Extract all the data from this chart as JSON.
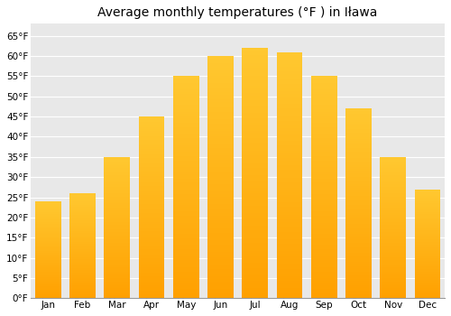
{
  "months": [
    "Jan",
    "Feb",
    "Mar",
    "Apr",
    "May",
    "Jun",
    "Jul",
    "Aug",
    "Sep",
    "Oct",
    "Nov",
    "Dec"
  ],
  "values": [
    24,
    26,
    35,
    45,
    55,
    60,
    62,
    61,
    55,
    47,
    35,
    27
  ],
  "bar_color_top": "#FFC830",
  "bar_color_bottom": "#FFA000",
  "title": "Average monthly temperatures (°F ) in Iława",
  "ylim": [
    0,
    68
  ],
  "yticks": [
    0,
    5,
    10,
    15,
    20,
    25,
    30,
    35,
    40,
    45,
    50,
    55,
    60,
    65
  ],
  "ytick_labels": [
    "0°F",
    "5°F",
    "10°F",
    "15°F",
    "20°F",
    "25°F",
    "30°F",
    "35°F",
    "40°F",
    "45°F",
    "50°F",
    "55°F",
    "60°F",
    "65°F"
  ],
  "background_color": "#ffffff",
  "plot_bg_color": "#e8e8e8",
  "grid_color": "#ffffff",
  "title_fontsize": 10,
  "tick_fontsize": 7.5,
  "bar_width": 0.75
}
